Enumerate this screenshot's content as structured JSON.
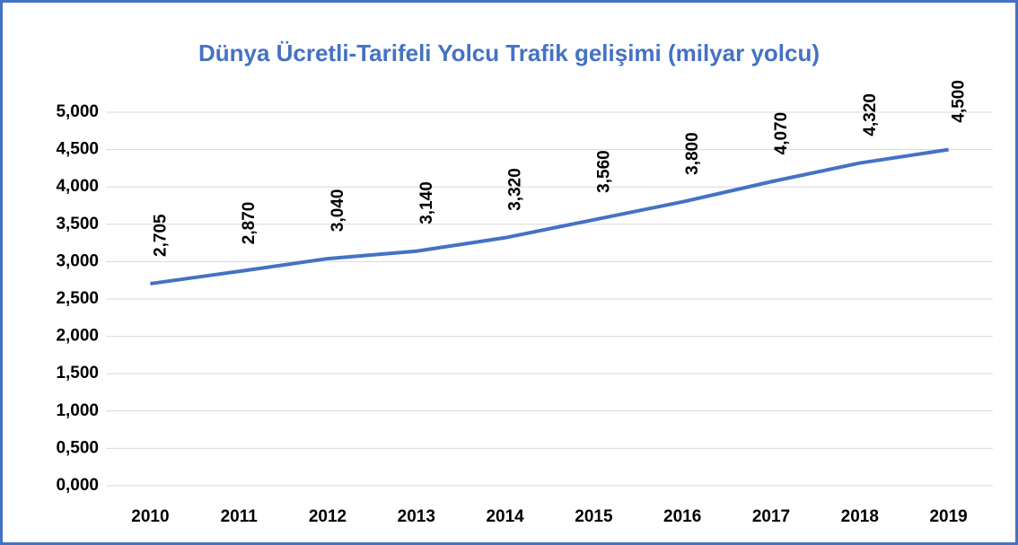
{
  "chart_data": {
    "type": "line",
    "title": "Dünya Ücretli-Tarifeli Yolcu Trafik gelişimi (milyar yolcu)",
    "categories": [
      "2010",
      "2011",
      "2012",
      "2013",
      "2014",
      "2015",
      "2016",
      "2017",
      "2018",
      "2019"
    ],
    "series": [
      {
        "name": null,
        "color": "#4472c4",
        "values": [
          2.705,
          2.87,
          3.04,
          3.14,
          3.32,
          3.56,
          3.8,
          4.07,
          4.32,
          4.5
        ],
        "value_labels": [
          "2,705",
          "2,870",
          "3,040",
          "3,140",
          "3,320",
          "3,560",
          "3,800",
          "4,070",
          "4,320",
          "4,500"
        ]
      }
    ],
    "ylim": [
      0,
      5
    ],
    "yticks": [
      {
        "value": 0,
        "label": "0,000"
      },
      {
        "value": 0.5,
        "label": "0,500"
      },
      {
        "value": 1,
        "label": "1,000"
      },
      {
        "value": 1.5,
        "label": "1,500"
      },
      {
        "value": 2,
        "label": "2,000"
      },
      {
        "value": 2.5,
        "label": "2,500"
      },
      {
        "value": 3,
        "label": "3,000"
      },
      {
        "value": 3.5,
        "label": "3,500"
      },
      {
        "value": 4,
        "label": "4,000"
      },
      {
        "value": 4.5,
        "label": "4,500"
      },
      {
        "value": 5,
        "label": "5,000"
      }
    ],
    "grid": true
  }
}
